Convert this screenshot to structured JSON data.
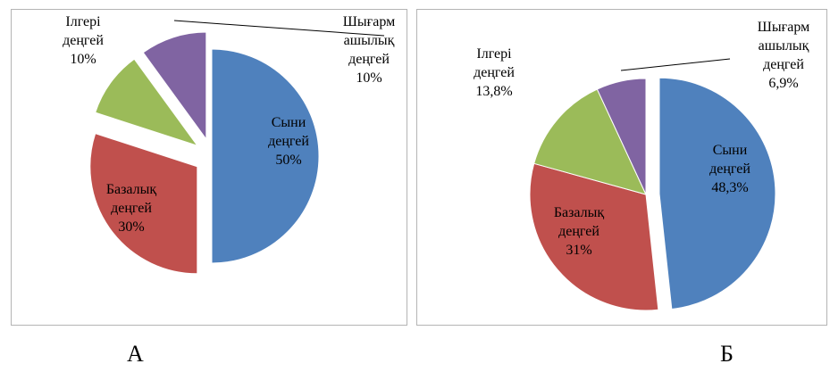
{
  "chart_data": [
    {
      "type": "pie",
      "title": "",
      "caption": "А",
      "slices": [
        {
          "label": [
            "Сыни",
            "деңгей"
          ],
          "percent_label": "50%",
          "value": 50,
          "color": "#4f81bd",
          "exploded": false
        },
        {
          "label": [
            "Базалық",
            "деңгей"
          ],
          "percent_label": "30%",
          "value": 30,
          "color": "#c0504d",
          "exploded": true
        },
        {
          "label": [
            "Ілгері",
            "деңгей"
          ],
          "percent_label": "10%",
          "value": 10,
          "color": "#9bbb59",
          "exploded": true
        },
        {
          "label": [
            "Шығарм",
            "ашылық",
            "деңгей"
          ],
          "percent_label": "10%",
          "value": 10,
          "color": "#8064a2",
          "exploded": true
        }
      ]
    },
    {
      "type": "pie",
      "title": "",
      "caption": "Б",
      "slices": [
        {
          "label": [
            "Сыни",
            "деңгей"
          ],
          "percent_label": "48,3%",
          "value": 48.3,
          "color": "#4f81bd",
          "exploded": true
        },
        {
          "label": [
            "Базалық",
            "деңгей"
          ],
          "percent_label": "31%",
          "value": 31,
          "color": "#c0504d",
          "exploded": false
        },
        {
          "label": [
            "Ілгері",
            "деңгей"
          ],
          "percent_label": "13,8%",
          "value": 13.8,
          "color": "#9bbb59",
          "exploded": false
        },
        {
          "label": [
            "Шығарм",
            "ашылық",
            "деңгей"
          ],
          "percent_label": "6,9%",
          "value": 6.9,
          "color": "#8064a2",
          "exploded": false
        }
      ]
    }
  ]
}
